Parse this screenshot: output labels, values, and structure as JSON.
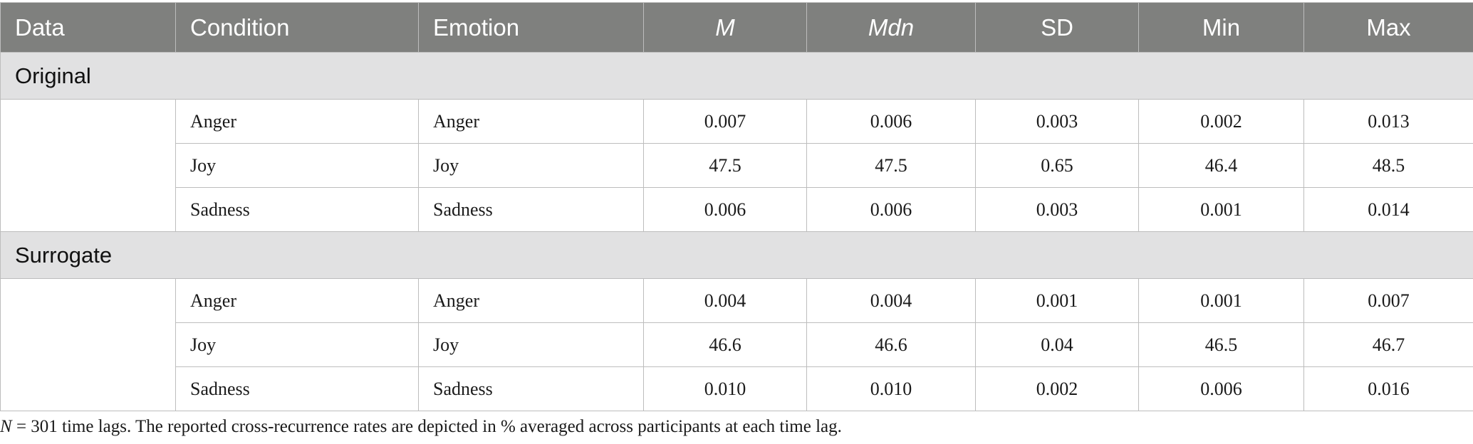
{
  "headers": {
    "data": "Data",
    "condition": "Condition",
    "emotion": "Emotion",
    "m": "M",
    "mdn": "Mdn",
    "sd": "SD",
    "min": "Min",
    "max": "Max"
  },
  "groups": [
    {
      "label": "Original",
      "rows": [
        {
          "condition": "Anger",
          "emotion": "Anger",
          "m": "0.007",
          "mdn": "0.006",
          "sd": "0.003",
          "min": "0.002",
          "max": "0.013"
        },
        {
          "condition": "Joy",
          "emotion": "Joy",
          "m": "47.5",
          "mdn": "47.5",
          "sd": "0.65",
          "min": "46.4",
          "max": "48.5"
        },
        {
          "condition": "Sadness",
          "emotion": "Sadness",
          "m": "0.006",
          "mdn": "0.006",
          "sd": "0.003",
          "min": "0.001",
          "max": "0.014"
        }
      ]
    },
    {
      "label": "Surrogate",
      "rows": [
        {
          "condition": "Anger",
          "emotion": "Anger",
          "m": "0.004",
          "mdn": "0.004",
          "sd": "0.001",
          "min": "0.001",
          "max": "0.007"
        },
        {
          "condition": "Joy",
          "emotion": "Joy",
          "m": "46.6",
          "mdn": "46.6",
          "sd": "0.04",
          "min": "46.5",
          "max": "46.7"
        },
        {
          "condition": "Sadness",
          "emotion": "Sadness",
          "m": "0.010",
          "mdn": "0.010",
          "sd": "0.002",
          "min": "0.006",
          "max": "0.016"
        }
      ]
    }
  ],
  "note": {
    "n_symbol": "N",
    "text": " = 301 time lags. The reported cross-recurrence rates are depicted in % averaged across participants at each time lag."
  }
}
